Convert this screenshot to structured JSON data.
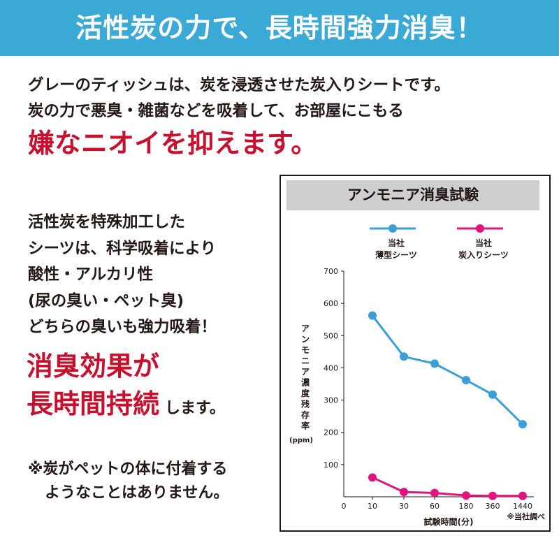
{
  "banner": {
    "title": "活性炭の力で、長時間強力消臭！"
  },
  "intro": {
    "line1": "グレーのティッシュは、炭を浸透させた炭入りシートです。",
    "line2": "炭の力で悪臭・雑菌などを吸着して、お部屋にこもる",
    "headline": "嫌なニオイを抑えます。"
  },
  "feature": {
    "lines": [
      "活性炭を特殊加工した",
      "シーツは、科学吸着により",
      "酸性・アルカリ性",
      "(尿の臭い・ペット臭)",
      "どちらの臭いも強力吸着！"
    ]
  },
  "effect": {
    "line1": "消臭効果が",
    "line2": "長時間持続",
    "line2_tail": "します。"
  },
  "note": {
    "line1": "※炭がペットの体に付着する",
    "line2": "ようなことはありません。"
  },
  "colors": {
    "banner": "#3aa9d6",
    "accent_red": "#c8102e",
    "series_blue": "#3a9fd9",
    "series_pink": "#e0137f"
  },
  "chart_data": {
    "type": "line",
    "title": "アンモニア消臭試験",
    "xlabel": "試験時間(分)",
    "ylabel": "アンモニア濃度残存率",
    "ylabel_unit": "(ppm)",
    "categories": [
      "10",
      "30",
      "60",
      "180",
      "360",
      "1440"
    ],
    "x_origin_label": "0",
    "ylim": [
      0,
      700
    ],
    "yticks": [
      100,
      200,
      300,
      400,
      500,
      600,
      700
    ],
    "series": [
      {
        "name": "当社 薄型シーツ",
        "name_line1": "当社",
        "name_line2": "薄型シーツ",
        "color": "#3a9fd9",
        "values": [
          562,
          435,
          413,
          362,
          317,
          225
        ]
      },
      {
        "name": "当社 炭入りシーツ",
        "name_line1": "当社",
        "name_line2": "炭入りシーツ",
        "color": "#e0137f",
        "values": [
          60,
          15,
          12,
          4,
          3,
          3
        ]
      }
    ],
    "legend": "top",
    "grid": false,
    "source_note": "※当社調べ"
  }
}
